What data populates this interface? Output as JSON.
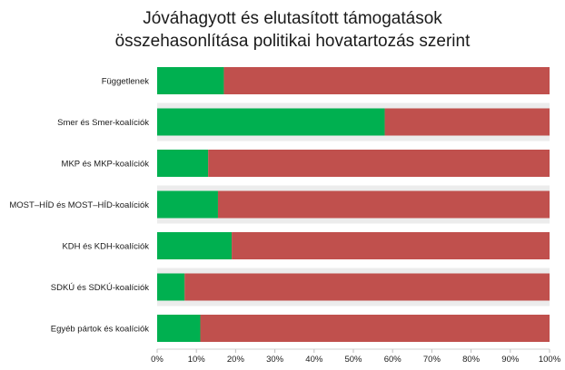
{
  "chart_data": {
    "type": "bar",
    "orientation": "horizontal",
    "stacked": "percent",
    "title": [
      "Jóváhagyott és elutasított támogatások",
      "összehasonlítása politikai hovatartozás szerint"
    ],
    "categories": [
      "Függetlenek",
      "Smer és Smer-koalíciók",
      "MKP és MKP-koalíciók",
      "MOST–HÍD és MOST–HÍD-koalíciók",
      "KDH és KDH-koalíciók",
      "SDKÚ és SDKÚ-koalíciók",
      "Egyéb pártok és koalíciók"
    ],
    "series": [
      {
        "values": [
          17,
          58,
          13,
          15.5,
          19,
          7,
          11
        ],
        "color": "#00b050"
      },
      {
        "values": [
          83,
          42,
          87,
          84.5,
          81,
          93,
          89
        ],
        "color": "#c0504d"
      }
    ],
    "xticks": [
      "0%",
      "10%",
      "20%",
      "30%",
      "40%",
      "50%",
      "60%",
      "70%",
      "80%",
      "90%",
      "100%"
    ],
    "xlim": [
      0,
      100
    ],
    "xlabel": "",
    "ylabel": "",
    "grid": false,
    "legend": "none"
  }
}
